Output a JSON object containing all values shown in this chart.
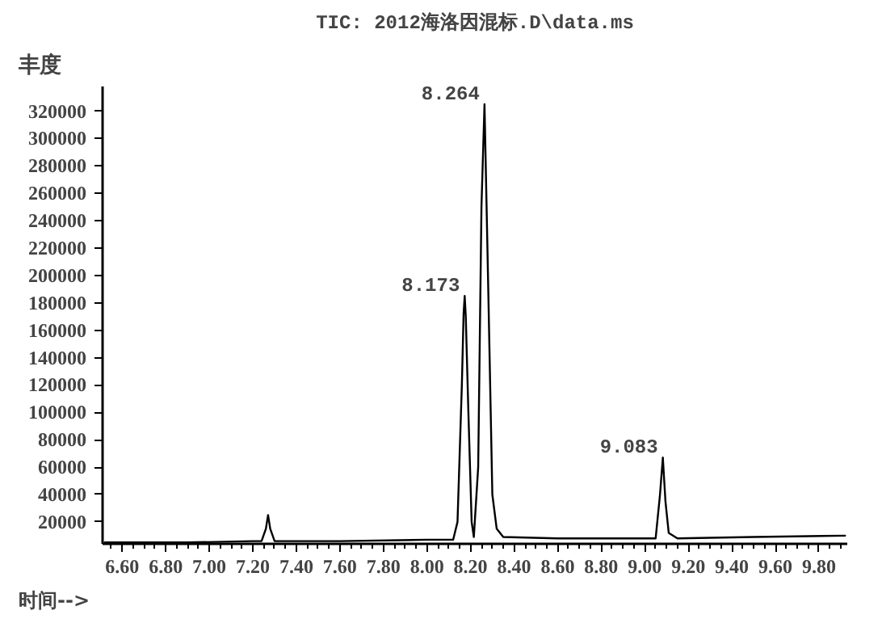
{
  "chart_data": {
    "type": "line",
    "title": "TIC: 2012海洛因混标.D\\data.ms",
    "xlabel": "时间-->",
    "ylabel": "丰度",
    "series": [
      {
        "color": "#000000",
        "x": [
          6.52,
          6.9,
          7.2,
          7.24,
          7.26,
          7.27,
          7.28,
          7.3,
          7.6,
          8.0,
          8.12,
          8.14,
          8.16,
          8.168,
          8.173,
          8.178,
          8.19,
          8.205,
          8.215,
          8.235,
          8.25,
          8.264,
          8.28,
          8.3,
          8.32,
          8.35,
          8.6,
          9.0,
          9.05,
          9.07,
          9.083,
          9.095,
          9.11,
          9.15,
          9.5,
          9.92
        ],
        "values": [
          5000,
          5000,
          6000,
          6000,
          15000,
          25000,
          15000,
          6000,
          6000,
          7000,
          7000,
          20000,
          120000,
          172000,
          185000,
          170000,
          100000,
          20000,
          9000,
          60000,
          250000,
          325000,
          200000,
          40000,
          15000,
          9000,
          8000,
          8000,
          8000,
          40000,
          67000,
          35000,
          12000,
          8000,
          9000,
          10000
        ]
      }
    ],
    "annotations": [
      {
        "text": "8.173",
        "x": 8.173,
        "y": 185000
      },
      {
        "text": "8.264",
        "x": 8.264,
        "y": 325000
      },
      {
        "text": "9.083",
        "x": 9.083,
        "y": 67000
      }
    ],
    "xlim": [
      6.51,
      9.93
    ],
    "ylim": [
      4000,
      338000
    ],
    "xticks": [
      {
        "value": 6.6,
        "label": "6.60"
      },
      {
        "value": 6.8,
        "label": "6.80"
      },
      {
        "value": 7.0,
        "label": "7.00"
      },
      {
        "value": 7.2,
        "label": "7.20"
      },
      {
        "value": 7.4,
        "label": "7.40"
      },
      {
        "value": 7.6,
        "label": "7.60"
      },
      {
        "value": 7.8,
        "label": "7.80"
      },
      {
        "value": 8.0,
        "label": "8.00"
      },
      {
        "value": 8.2,
        "label": "8.20"
      },
      {
        "value": 8.4,
        "label": "8.40"
      },
      {
        "value": 8.6,
        "label": "8.60"
      },
      {
        "value": 8.8,
        "label": "8.80"
      },
      {
        "value": 9.0,
        "label": "9.00"
      },
      {
        "value": 9.2,
        "label": "9.20"
      },
      {
        "value": 9.4,
        "label": "9.40"
      },
      {
        "value": 9.6,
        "label": "9.60"
      },
      {
        "value": 9.8,
        "label": "9.80"
      }
    ],
    "yticks": [
      20000,
      40000,
      60000,
      80000,
      100000,
      120000,
      140000,
      160000,
      180000,
      200000,
      220000,
      240000,
      260000,
      280000,
      300000,
      320000
    ],
    "grid": false,
    "marker": "none",
    "line_style": "solid"
  }
}
